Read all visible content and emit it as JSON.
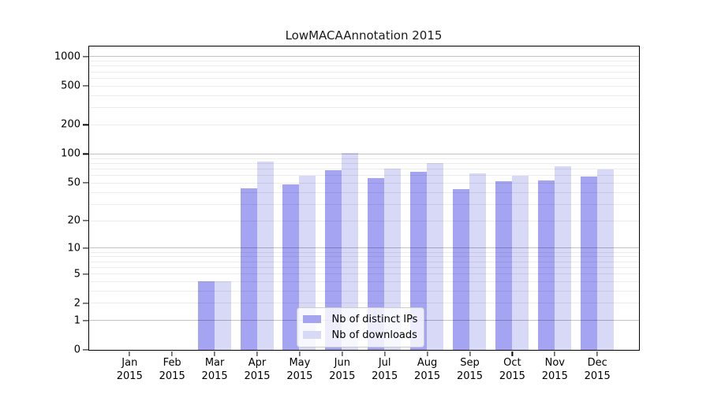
{
  "title": "LowMACAAnnotation 2015",
  "chart_data": {
    "type": "bar",
    "title": "LowMACAAnnotation 2015",
    "categories": [
      "Jan 2015",
      "Feb 2015",
      "Mar 2015",
      "Apr 2015",
      "May 2015",
      "Jun 2015",
      "Jul 2015",
      "Aug 2015",
      "Sep 2015",
      "Oct 2015",
      "Nov 2015",
      "Dec 2015"
    ],
    "x_tick_lines": [
      [
        "Jan",
        "2015"
      ],
      [
        "Feb",
        "2015"
      ],
      [
        "Mar",
        "2015"
      ],
      [
        "Apr",
        "2015"
      ],
      [
        "May",
        "2015"
      ],
      [
        "Jun",
        "2015"
      ],
      [
        "Jul",
        "2015"
      ],
      [
        "Aug",
        "2015"
      ],
      [
        "Sep",
        "2015"
      ],
      [
        "Oct",
        "2015"
      ],
      [
        "Nov",
        "2015"
      ],
      [
        "Dec",
        "2015"
      ]
    ],
    "series": [
      {
        "name": "Nb of distinct IPs",
        "color": "#a4a4f2",
        "values": [
          0,
          0,
          4,
          44,
          48,
          67,
          56,
          65,
          43,
          52,
          53,
          58
        ]
      },
      {
        "name": "Nb of downloads",
        "color": "#d8d8f7",
        "values": [
          0,
          0,
          4,
          83,
          59,
          102,
          70,
          80,
          63,
          59,
          74,
          69
        ]
      }
    ],
    "y_ticks": [
      0,
      1,
      2,
      5,
      10,
      20,
      50,
      100,
      200,
      500,
      1000
    ],
    "y_scale": "log1p",
    "ylim": [
      0,
      1270
    ],
    "xlabel": "",
    "ylabel": "",
    "grid": true,
    "grid_major_at": [
      1,
      10,
      100,
      1000
    ],
    "legend_position": "inside-bottom-center"
  },
  "colors": {
    "background": "#ffffff",
    "axis": "#000000",
    "bar_distinct_ips": "#a4a4f2",
    "bar_downloads": "#d8d8f7"
  }
}
